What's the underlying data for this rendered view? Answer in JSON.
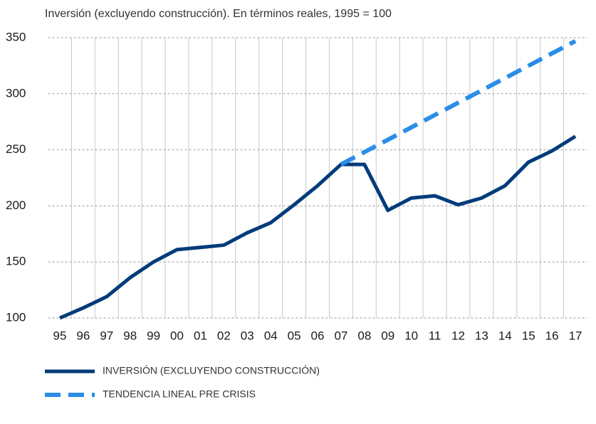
{
  "chart_data": {
    "type": "line",
    "title": "Inversión (excluyendo construcción). En términos reales, 1995 = 100",
    "categories": [
      "95",
      "96",
      "97",
      "98",
      "99",
      "00",
      "01",
      "02",
      "03",
      "04",
      "05",
      "06",
      "07",
      "08",
      "09",
      "10",
      "11",
      "12",
      "13",
      "14",
      "15",
      "16",
      "17"
    ],
    "series": [
      {
        "name": "INVERSIÓN (EXCLUYENDO CONSTRUCCIÓN)",
        "color": "#003b7a",
        "dashed": false,
        "values": [
          100,
          109,
          119,
          136,
          150,
          161,
          163,
          165,
          176,
          185,
          201,
          218,
          237,
          237,
          196,
          207,
          209,
          201,
          207,
          218,
          239,
          249,
          262
        ]
      },
      {
        "name": "TENDENCIA LINEAL PRE CRISIS",
        "color": "#2a8de8",
        "dashed": true,
        "values": [
          null,
          null,
          null,
          null,
          null,
          null,
          null,
          null,
          null,
          null,
          null,
          null,
          237,
          248,
          259,
          270,
          281,
          292,
          303,
          314,
          325,
          336,
          347
        ]
      }
    ],
    "ylim": [
      100,
      350
    ],
    "yticks": [
      100,
      150,
      200,
      250,
      300,
      350
    ],
    "grid": true,
    "legend": "bottom"
  }
}
